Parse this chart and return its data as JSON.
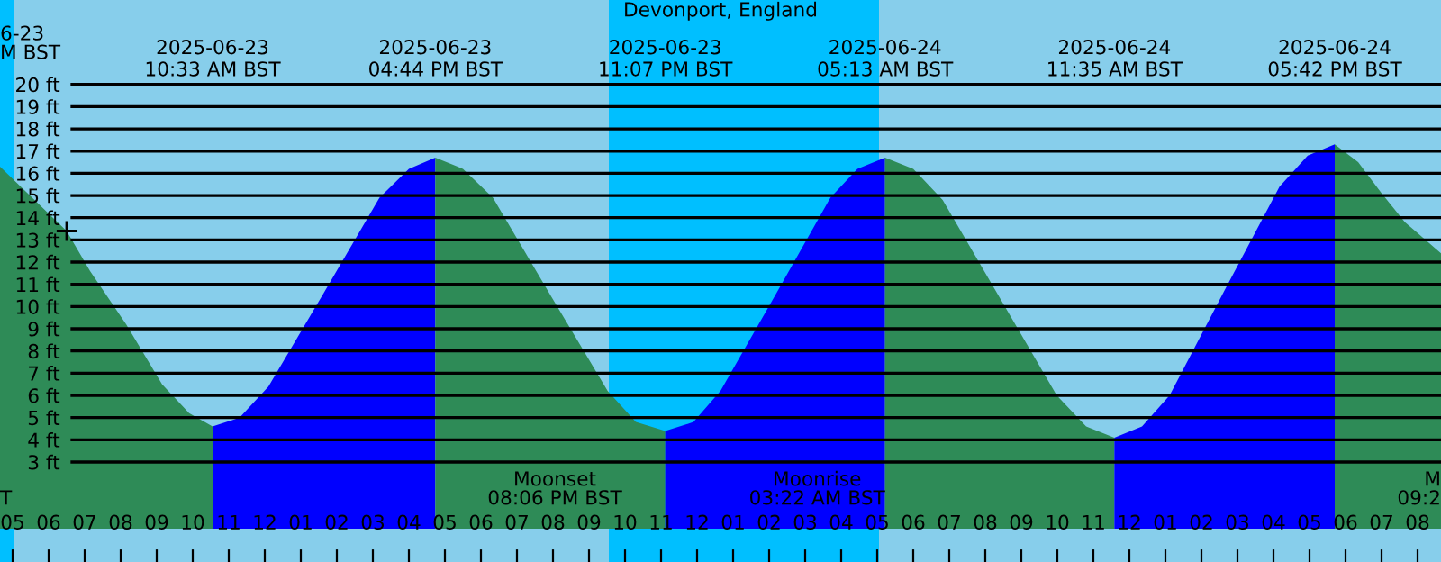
{
  "chart_data": {
    "type": "area",
    "title": "Devonport, England",
    "xlim": [
      "2025-06-23T04:39",
      "2025-06-24T20:39"
    ],
    "ylim": [
      -1.5,
      23.8
    ],
    "xticks": [
      {
        "value": "2025-06-23T05:00",
        "label": "05"
      },
      {
        "value": "2025-06-23T06:00",
        "label": "06"
      },
      {
        "value": "2025-06-23T07:00",
        "label": "07"
      },
      {
        "value": "2025-06-23T08:00",
        "label": "08"
      },
      {
        "value": "2025-06-23T09:00",
        "label": "09"
      },
      {
        "value": "2025-06-23T10:00",
        "label": "10"
      },
      {
        "value": "2025-06-23T11:00",
        "label": "11"
      },
      {
        "value": "2025-06-23T12:00",
        "label": "12"
      },
      {
        "value": "2025-06-23T13:00",
        "label": "01"
      },
      {
        "value": "2025-06-23T14:00",
        "label": "02"
      },
      {
        "value": "2025-06-23T15:00",
        "label": "03"
      },
      {
        "value": "2025-06-23T16:00",
        "label": "04"
      },
      {
        "value": "2025-06-23T17:00",
        "label": "05"
      },
      {
        "value": "2025-06-23T18:00",
        "label": "06"
      },
      {
        "value": "2025-06-23T19:00",
        "label": "07"
      },
      {
        "value": "2025-06-23T20:00",
        "label": "08"
      },
      {
        "value": "2025-06-23T21:00",
        "label": "09"
      },
      {
        "value": "2025-06-23T22:00",
        "label": "10"
      },
      {
        "value": "2025-06-23T23:00",
        "label": "11"
      },
      {
        "value": "2025-06-24T00:00",
        "label": "12"
      },
      {
        "value": "2025-06-24T01:00",
        "label": "01"
      },
      {
        "value": "2025-06-24T02:00",
        "label": "02"
      },
      {
        "value": "2025-06-24T03:00",
        "label": "03"
      },
      {
        "value": "2025-06-24T04:00",
        "label": "04"
      },
      {
        "value": "2025-06-24T05:00",
        "label": "05"
      },
      {
        "value": "2025-06-24T06:00",
        "label": "06"
      },
      {
        "value": "2025-06-24T07:00",
        "label": "07"
      },
      {
        "value": "2025-06-24T08:00",
        "label": "08"
      },
      {
        "value": "2025-06-24T09:00",
        "label": "09"
      },
      {
        "value": "2025-06-24T10:00",
        "label": "10"
      },
      {
        "value": "2025-06-24T11:00",
        "label": "11"
      },
      {
        "value": "2025-06-24T12:00",
        "label": "12"
      },
      {
        "value": "2025-06-24T13:00",
        "label": "01"
      },
      {
        "value": "2025-06-24T14:00",
        "label": "02"
      },
      {
        "value": "2025-06-24T15:00",
        "label": "03"
      },
      {
        "value": "2025-06-24T16:00",
        "label": "04"
      },
      {
        "value": "2025-06-24T17:00",
        "label": "05"
      },
      {
        "value": "2025-06-24T18:00",
        "label": "06"
      },
      {
        "value": "2025-06-24T19:00",
        "label": "07"
      },
      {
        "value": "2025-06-24T20:00",
        "label": "08"
      }
    ],
    "yticks": [
      {
        "value": 3,
        "label": "3 ft"
      },
      {
        "value": 4,
        "label": "4 ft"
      },
      {
        "value": 5,
        "label": "5 ft"
      },
      {
        "value": 6,
        "label": "6 ft"
      },
      {
        "value": 7,
        "label": "7 ft"
      },
      {
        "value": 8,
        "label": "8 ft"
      },
      {
        "value": 9,
        "label": "9 ft"
      },
      {
        "value": 10,
        "label": "10 ft"
      },
      {
        "value": 11,
        "label": "11 ft"
      },
      {
        "value": 12,
        "label": "12 ft"
      },
      {
        "value": 13,
        "label": "13 ft"
      },
      {
        "value": 14,
        "label": "14 ft"
      },
      {
        "value": 15,
        "label": "15 ft"
      },
      {
        "value": 16,
        "label": "16 ft"
      },
      {
        "value": 17,
        "label": "17 ft"
      },
      {
        "value": 18,
        "label": "18 ft"
      },
      {
        "value": 19,
        "label": "19 ft"
      },
      {
        "value": 20,
        "label": "20 ft"
      }
    ],
    "x2lim": [
      "2025-06-23T04:39",
      "2025-06-24T20:39"
    ],
    "x2ticks": [
      {
        "value": "2025-06-23T10:33",
        "label": "2025-06-23\n10:33 AM BST"
      },
      {
        "value": "2025-06-23T16:44",
        "label": "2025-06-23\n04:44 PM BST"
      },
      {
        "value": "2025-06-23T23:07",
        "label": "2025-06-23\n11:07 PM BST"
      },
      {
        "value": "2025-06-24T05:13",
        "label": "2025-06-24\n05:13 AM BST"
      },
      {
        "value": "2025-06-24T11:35",
        "label": "2025-06-24\n11:35 AM BST"
      },
      {
        "value": "2025-06-24T17:42",
        "label": "2025-06-24\n05:42 PM BST"
      }
    ],
    "grid": "y",
    "bands": [
      {
        "axis": "x",
        "from": "2025-06-23T04:39",
        "to": "2025-06-23T05:03",
        "color": "#00bfff"
      },
      {
        "axis": "x",
        "from": "2025-06-23T21:33",
        "to": "2025-06-24T05:03",
        "color": "#00bfff"
      }
    ],
    "series": [
      {
        "color": "#2e8b57",
        "x": [
          "2025-06-23T04:39",
          "2025-06-23T06:30",
          "2025-06-23T07:09",
          "2025-06-23T08:09",
          "2025-06-23T09:09",
          "2025-06-23T09:54",
          "2025-06-23T10:33"
        ],
        "values": [
          16.3,
          13.4,
          11.6,
          9.2,
          6.5,
          5.2,
          4.6
        ]
      },
      {
        "color": "#0000ff",
        "x": [
          "2025-06-23T10:33",
          "2025-06-23T11:18",
          "2025-06-23T12:06",
          "2025-06-23T13:38",
          "2025-06-23T15:11",
          "2025-06-23T16:00",
          "2025-06-23T16:44"
        ],
        "values": [
          4.6,
          5.0,
          6.4,
          10.6,
          14.9,
          16.2,
          16.7
        ]
      },
      {
        "color": "#2e8b57",
        "x": [
          "2025-06-23T16:44",
          "2025-06-23T17:30",
          "2025-06-23T18:20",
          "2025-06-23T19:56",
          "2025-06-23T21:31",
          "2025-06-23T22:18",
          "2025-06-23T23:07"
        ],
        "values": [
          16.7,
          16.2,
          14.9,
          10.5,
          6.2,
          4.8,
          4.4
        ]
      },
      {
        "color": "#0000ff",
        "x": [
          "2025-06-23T23:07",
          "2025-06-23T23:54",
          "2025-06-24T00:39",
          "2025-06-24T02:10",
          "2025-06-24T03:42",
          "2025-06-24T04:27",
          "2025-06-24T05:13"
        ],
        "values": [
          4.4,
          4.8,
          6.2,
          10.5,
          14.9,
          16.2,
          16.7
        ]
      },
      {
        "color": "#2e8b57",
        "x": [
          "2025-06-24T05:13",
          "2025-06-24T06:00",
          "2025-06-24T06:49",
          "2025-06-24T08:24",
          "2025-06-24T09:59",
          "2025-06-24T10:48",
          "2025-06-24T11:35"
        ],
        "values": [
          16.7,
          16.2,
          14.8,
          10.4,
          6.0,
          4.6,
          4.1
        ]
      },
      {
        "color": "#0000ff",
        "x": [
          "2025-06-24T11:35",
          "2025-06-24T12:21",
          "2025-06-24T13:07",
          "2025-06-24T14:38",
          "2025-06-24T16:10",
          "2025-06-24T16:57",
          "2025-06-24T17:42"
        ],
        "values": [
          4.1,
          4.6,
          6.0,
          10.7,
          15.4,
          16.8,
          17.3
        ]
      },
      {
        "color": "#2e8b57",
        "x": [
          "2025-06-24T17:42",
          "2025-06-24T18:21",
          "2025-06-24T19:00",
          "2025-06-24T19:39",
          "2025-06-24T20:39"
        ],
        "values": [
          17.3,
          16.5,
          15.1,
          13.8,
          12.4
        ]
      },
      {
        "type": "scatter",
        "marker": "cross",
        "color": "#000000",
        "x": [
          "2025-06-23T06:30"
        ],
        "values": [
          13.4
        ]
      }
    ],
    "annotations": [
      "Moonset\n08:06 PM BST",
      "Moonrise\n03:22 AM BST",
      "6-23\nM BST",
      "T",
      "M\n09:2"
    ]
  }
}
